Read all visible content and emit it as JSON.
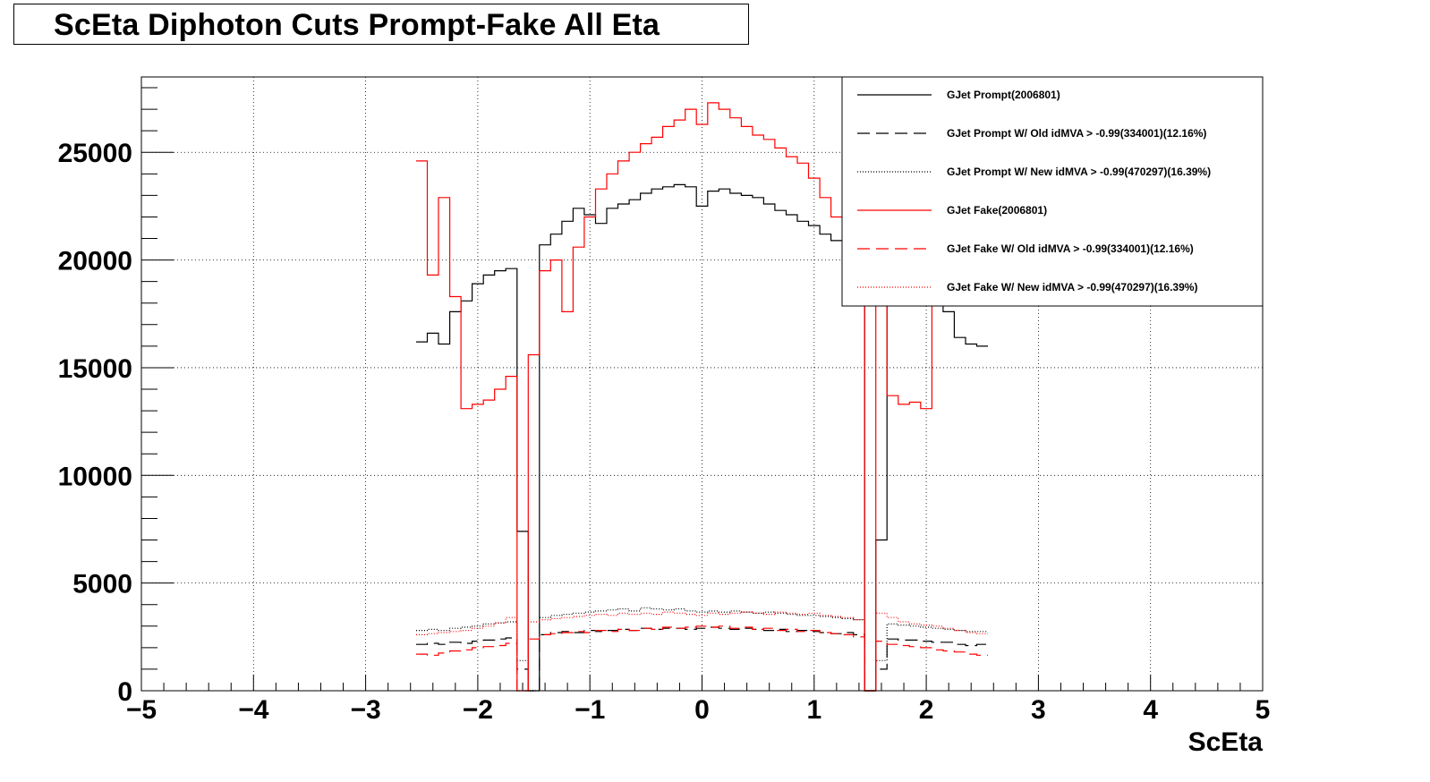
{
  "title": "ScEta Diphoton Cuts Prompt-Fake All Eta",
  "chart_data": {
    "type": "line",
    "title": "ScEta Diphoton Cuts Prompt-Fake All Eta",
    "xlabel": "ScEta",
    "ylabel": "",
    "xlim": [
      -5,
      5
    ],
    "ylim": [
      0,
      28500
    ],
    "grid": true,
    "legend_position": "top-right",
    "x_tick_labels": [
      "−5",
      "−4",
      "−3",
      "−2",
      "−1",
      "0",
      "1",
      "2",
      "3",
      "4",
      "5"
    ],
    "x_tick_values": [
      -5,
      -4,
      -3,
      -2,
      -1,
      0,
      1,
      2,
      3,
      4,
      5
    ],
    "y_tick_labels": [
      "0",
      "5000",
      "10000",
      "15000",
      "20000",
      "25000"
    ],
    "y_tick_values": [
      0,
      5000,
      10000,
      15000,
      20000,
      25000
    ],
    "series": [
      {
        "name": "GJet Prompt(2006801)",
        "color": "#000000",
        "style": "solid",
        "x": [
          -2.5,
          -2.4,
          -2.3,
          -2.2,
          -2.1,
          -2.0,
          -1.9,
          -1.8,
          -1.7,
          -1.6,
          -1.5,
          -1.4,
          -1.3,
          -1.2,
          -1.1,
          -1.0,
          -0.9,
          -0.8,
          -0.7,
          -0.6,
          -0.5,
          -0.4,
          -0.3,
          -0.2,
          -0.1,
          0.0,
          0.1,
          0.2,
          0.3,
          0.4,
          0.5,
          0.6,
          0.7,
          0.8,
          0.9,
          1.0,
          1.1,
          1.2,
          1.3,
          1.4,
          1.5,
          1.6,
          1.7,
          1.8,
          1.9,
          2.0,
          2.1,
          2.2,
          2.3,
          2.4,
          2.5
        ],
        "y": [
          16200,
          16600,
          16100,
          17600,
          18100,
          18900,
          19300,
          19500,
          19600,
          7400,
          0,
          20700,
          21200,
          21800,
          22400,
          22100,
          21700,
          22400,
          22600,
          22800,
          23100,
          23300,
          23400,
          23500,
          23400,
          22500,
          23200,
          23300,
          23100,
          23000,
          22900,
          22600,
          22300,
          22100,
          21800,
          21600,
          21200,
          20900,
          20500,
          20100,
          0,
          7000,
          18300,
          18100,
          18200,
          19200,
          18900,
          17600,
          16400,
          16100,
          16000
        ]
      },
      {
        "name": "GJet Prompt W/ Old idMVA > -0.99(334001)(12.16%)",
        "color": "#000000",
        "style": "dashed",
        "x": [
          -2.5,
          -2.4,
          -2.3,
          -2.2,
          -2.1,
          -2.0,
          -1.9,
          -1.8,
          -1.7,
          -1.6,
          -1.5,
          -1.4,
          -1.3,
          -1.2,
          -1.1,
          -1.0,
          -0.9,
          -0.8,
          -0.7,
          -0.6,
          -0.5,
          -0.4,
          -0.3,
          -0.2,
          -0.1,
          0.0,
          0.1,
          0.2,
          0.3,
          0.4,
          0.5,
          0.6,
          0.7,
          0.8,
          0.9,
          1.0,
          1.1,
          1.2,
          1.3,
          1.4,
          1.5,
          1.6,
          1.7,
          1.8,
          1.9,
          2.0,
          2.1,
          2.2,
          2.3,
          2.4,
          2.5
        ],
        "y": [
          2150,
          2200,
          2150,
          2250,
          2200,
          2300,
          2350,
          2400,
          2450,
          1000,
          0,
          2600,
          2700,
          2750,
          2700,
          2800,
          2750,
          2800,
          2850,
          2800,
          2900,
          2850,
          2900,
          2900,
          2850,
          2900,
          2950,
          2900,
          2850,
          2900,
          2850,
          2800,
          2850,
          2750,
          2800,
          2750,
          2700,
          2650,
          2700,
          2600,
          0,
          1000,
          2400,
          2350,
          2350,
          2300,
          2250,
          2250,
          2150,
          2100,
          2150
        ]
      },
      {
        "name": "GJet Prompt W/ New idMVA > -0.99(470297)(16.39%)",
        "color": "#000000",
        "style": "dotted",
        "x": [
          -2.5,
          -2.4,
          -2.3,
          -2.2,
          -2.1,
          -2.0,
          -1.9,
          -1.8,
          -1.7,
          -1.6,
          -1.5,
          -1.4,
          -1.3,
          -1.2,
          -1.1,
          -1.0,
          -0.9,
          -0.8,
          -0.7,
          -0.6,
          -0.5,
          -0.4,
          -0.3,
          -0.2,
          -0.1,
          0.0,
          0.1,
          0.2,
          0.3,
          0.4,
          0.5,
          0.6,
          0.7,
          0.8,
          0.9,
          1.0,
          1.1,
          1.2,
          1.3,
          1.4,
          1.5,
          1.6,
          1.7,
          1.8,
          1.9,
          2.0,
          2.1,
          2.2,
          2.3,
          2.4,
          2.5
        ],
        "y": [
          2800,
          2850,
          2800,
          2900,
          2950,
          3000,
          3100,
          3150,
          3200,
          1400,
          0,
          3400,
          3500,
          3550,
          3600,
          3650,
          3700,
          3750,
          3800,
          3700,
          3850,
          3800,
          3750,
          3800,
          3700,
          3650,
          3700,
          3650,
          3700,
          3650,
          3600,
          3650,
          3600,
          3550,
          3500,
          3500,
          3450,
          3400,
          3350,
          3300,
          0,
          1400,
          3100,
          3050,
          3000,
          2950,
          2900,
          2850,
          2800,
          2750,
          2750
        ]
      },
      {
        "name": "GJet Fake(2006801)",
        "color": "#ff0000",
        "style": "solid",
        "x": [
          -2.5,
          -2.4,
          -2.3,
          -2.2,
          -2.1,
          -2.0,
          -1.9,
          -1.8,
          -1.7,
          -1.6,
          -1.5,
          -1.4,
          -1.3,
          -1.2,
          -1.1,
          -1.0,
          -0.9,
          -0.8,
          -0.7,
          -0.6,
          -0.5,
          -0.4,
          -0.3,
          -0.2,
          -0.1,
          0.0,
          0.1,
          0.2,
          0.3,
          0.4,
          0.5,
          0.6,
          0.7,
          0.8,
          0.9,
          1.0,
          1.1,
          1.2,
          1.3,
          1.4,
          1.5,
          1.6,
          1.7,
          1.8,
          1.9,
          2.0,
          2.1,
          2.2,
          2.3,
          2.4,
          2.5
        ],
        "y": [
          24600,
          19300,
          22900,
          18300,
          13100,
          13300,
          13500,
          14000,
          14600,
          0,
          15600,
          19500,
          20000,
          17600,
          20600,
          22000,
          23300,
          24000,
          24600,
          25000,
          25400,
          25700,
          26200,
          26500,
          27000,
          26300,
          27300,
          27000,
          26600,
          26200,
          25800,
          25600,
          25200,
          24800,
          24500,
          23800,
          22900,
          22000,
          21300,
          19000,
          0,
          18000,
          13700,
          13300,
          13400,
          13100,
          19200,
          19000,
          18600,
          18200,
          18000
        ]
      },
      {
        "name": "GJet Fake W/ Old idMVA > -0.99(334001)(12.16%)",
        "color": "#ff0000",
        "style": "dashed",
        "x": [
          -2.5,
          -2.4,
          -2.3,
          -2.2,
          -2.1,
          -2.0,
          -1.9,
          -1.8,
          -1.7,
          -1.6,
          -1.5,
          -1.4,
          -1.3,
          -1.2,
          -1.1,
          -1.0,
          -0.9,
          -0.8,
          -0.7,
          -0.6,
          -0.5,
          -0.4,
          -0.3,
          -0.2,
          -0.1,
          0.0,
          0.1,
          0.2,
          0.3,
          0.4,
          0.5,
          0.6,
          0.7,
          0.8,
          0.9,
          1.0,
          1.1,
          1.2,
          1.3,
          1.4,
          1.5,
          1.6,
          1.7,
          1.8,
          1.9,
          2.0,
          2.1,
          2.2,
          2.3,
          2.4,
          2.5
        ],
        "y": [
          1700,
          1650,
          1750,
          1850,
          1900,
          2000,
          2050,
          2100,
          2200,
          0,
          2400,
          2600,
          2650,
          2700,
          2750,
          2700,
          2800,
          2750,
          2850,
          2800,
          2900,
          2850,
          2950,
          2900,
          2950,
          3000,
          2950,
          3000,
          2900,
          2950,
          2850,
          2900,
          2800,
          2850,
          2750,
          2800,
          2700,
          2650,
          2600,
          2500,
          0,
          2300,
          2150,
          2100,
          2050,
          2000,
          1900,
          1850,
          1800,
          1700,
          1650
        ]
      },
      {
        "name": "GJet Fake W/ New idMVA > -0.99(470297)(16.39%)",
        "color": "#ff0000",
        "style": "dotted",
        "x": [
          -2.5,
          -2.4,
          -2.3,
          -2.2,
          -2.1,
          -2.0,
          -1.9,
          -1.8,
          -1.7,
          -1.6,
          -1.5,
          -1.4,
          -1.3,
          -1.2,
          -1.1,
          -1.0,
          -0.9,
          -0.8,
          -0.7,
          -0.6,
          -0.5,
          -0.4,
          -0.3,
          -0.2,
          -0.1,
          0.0,
          0.1,
          0.2,
          0.3,
          0.4,
          0.5,
          0.6,
          0.7,
          0.8,
          0.9,
          1.0,
          1.1,
          1.2,
          1.3,
          1.4,
          1.5,
          1.6,
          1.7,
          1.8,
          1.9,
          2.0,
          2.1,
          2.2,
          2.3,
          2.4,
          2.5
        ],
        "y": [
          2600,
          2650,
          2700,
          2750,
          2800,
          2900,
          3000,
          3150,
          3400,
          0,
          3200,
          3300,
          3350,
          3400,
          3450,
          3500,
          3550,
          3500,
          3600,
          3550,
          3600,
          3550,
          3650,
          3600,
          3550,
          3500,
          3600,
          3550,
          3600,
          3650,
          3600,
          3550,
          3650,
          3600,
          3550,
          3600,
          3500,
          3450,
          3400,
          3300,
          0,
          3600,
          3400,
          3200,
          3100,
          3050,
          3000,
          2900,
          2800,
          2700,
          2650
        ]
      }
    ]
  }
}
